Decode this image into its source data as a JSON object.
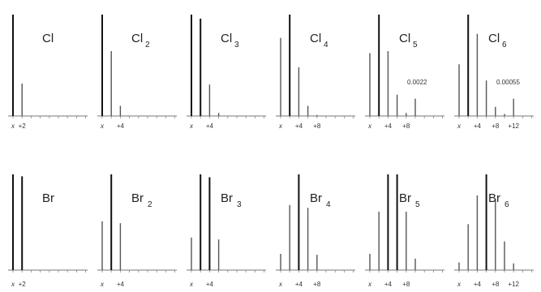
{
  "chart_data": [
    {
      "type": "bar",
      "title": "Cl",
      "subscript": "",
      "x": [
        0,
        2,
        4,
        6,
        8,
        10,
        12,
        14,
        16,
        18
      ],
      "values": [
        100,
        32,
        0,
        0,
        0,
        0,
        0,
        0,
        0,
        0
      ],
      "tick_labels": [
        {
          "x": 0,
          "text": "x"
        },
        {
          "x": 2,
          "text": "+2"
        }
      ],
      "annotation": ""
    },
    {
      "type": "bar",
      "title": "Cl",
      "subscript": "2",
      "x": [
        0,
        2,
        4,
        6,
        8,
        10,
        12,
        14,
        16,
        18
      ],
      "values": [
        100,
        64,
        10,
        0,
        0,
        0,
        0,
        0,
        0,
        0
      ],
      "tick_labels": [
        {
          "x": 0,
          "text": "x"
        },
        {
          "x": 4,
          "text": "+4"
        }
      ],
      "annotation": ""
    },
    {
      "type": "bar",
      "title": "Cl",
      "subscript": "3",
      "x": [
        0,
        2,
        4,
        6,
        8,
        10,
        12,
        14,
        16,
        18
      ],
      "values": [
        100,
        96,
        31,
        3,
        0,
        0,
        0,
        0,
        0,
        0
      ],
      "tick_labels": [
        {
          "x": 0,
          "text": "x"
        },
        {
          "x": 4,
          "text": "+4"
        }
      ],
      "annotation": ""
    },
    {
      "type": "bar",
      "title": "Cl",
      "subscript": "4",
      "x": [
        0,
        2,
        4,
        6,
        8,
        10,
        12,
        14,
        16,
        18
      ],
      "values": [
        77,
        100,
        48,
        10,
        1,
        0,
        0,
        0,
        0,
        0
      ],
      "tick_labels": [
        {
          "x": 0,
          "text": "x"
        },
        {
          "x": 4,
          "text": "+4"
        },
        {
          "x": 8,
          "text": "+8"
        }
      ],
      "annotation": ""
    },
    {
      "type": "bar",
      "title": "Cl",
      "subscript": "5",
      "x": [
        0,
        2,
        4,
        6,
        8,
        10,
        12,
        14,
        16,
        18
      ],
      "values": [
        62,
        100,
        64,
        21,
        3,
        17,
        0,
        0,
        0,
        0
      ],
      "tick_labels": [
        {
          "x": 0,
          "text": "x"
        },
        {
          "x": 4,
          "text": "+4"
        },
        {
          "x": 8,
          "text": "+8"
        }
      ],
      "annotation": "0.0022"
    },
    {
      "type": "bar",
      "title": "Cl",
      "subscript": "6",
      "x": [
        0,
        2,
        4,
        6,
        8,
        10,
        12,
        14,
        16,
        18
      ],
      "values": [
        51,
        100,
        81,
        35,
        9,
        2,
        17,
        0,
        0,
        0
      ],
      "tick_labels": [
        {
          "x": 0,
          "text": "x"
        },
        {
          "x": 4,
          "text": "+4"
        },
        {
          "x": 8,
          "text": "+8"
        },
        {
          "x": 12,
          "text": "+12"
        }
      ],
      "annotation": "0.00055"
    },
    {
      "type": "bar",
      "title": "Br",
      "subscript": "",
      "x": [
        0,
        2,
        4,
        6,
        8,
        10,
        12,
        14,
        16,
        18
      ],
      "values": [
        100,
        98,
        0,
        0,
        0,
        0,
        0,
        0,
        0,
        0
      ],
      "tick_labels": [
        {
          "x": 0,
          "text": "x"
        },
        {
          "x": 2,
          "text": "+2"
        }
      ],
      "annotation": ""
    },
    {
      "type": "bar",
      "title": "Br",
      "subscript": "2",
      "x": [
        0,
        2,
        4,
        6,
        8,
        10,
        12,
        14,
        16,
        18
      ],
      "values": [
        51,
        100,
        49,
        0,
        0,
        0,
        0,
        0,
        0,
        0
      ],
      "tick_labels": [
        {
          "x": 0,
          "text": "x"
        },
        {
          "x": 4,
          "text": "+4"
        }
      ],
      "annotation": ""
    },
    {
      "type": "bar",
      "title": "Br",
      "subscript": "3",
      "x": [
        0,
        2,
        4,
        6,
        8,
        10,
        12,
        14,
        16,
        18
      ],
      "values": [
        34,
        100,
        97,
        32,
        0,
        0,
        0,
        0,
        0,
        0
      ],
      "tick_labels": [
        {
          "x": 0,
          "text": "x"
        },
        {
          "x": 4,
          "text": "+4"
        }
      ],
      "annotation": ""
    },
    {
      "type": "bar",
      "title": "Br",
      "subscript": "4",
      "x": [
        0,
        2,
        4,
        6,
        8,
        10,
        12,
        14,
        16,
        18
      ],
      "values": [
        17,
        68,
        100,
        65,
        16,
        0,
        0,
        0,
        0,
        0
      ],
      "tick_labels": [
        {
          "x": 0,
          "text": "x"
        },
        {
          "x": 4,
          "text": "+4"
        },
        {
          "x": 8,
          "text": "+8"
        }
      ],
      "annotation": ""
    },
    {
      "type": "bar",
      "title": "Br",
      "subscript": "5",
      "x": [
        0,
        2,
        4,
        6,
        8,
        10,
        12,
        14,
        16,
        18
      ],
      "values": [
        17,
        61,
        100,
        100,
        61,
        12,
        0,
        0,
        0,
        0
      ],
      "tick_labels": [
        {
          "x": 0,
          "text": "x"
        },
        {
          "x": 4,
          "text": "+4"
        },
        {
          "x": 8,
          "text": "+8"
        }
      ],
      "annotation": ""
    },
    {
      "type": "bar",
      "title": "Br",
      "subscript": "6",
      "x": [
        0,
        2,
        4,
        6,
        8,
        10,
        12,
        14,
        16,
        18
      ],
      "values": [
        8,
        48,
        78,
        100,
        74,
        30,
        7,
        0,
        0,
        0
      ],
      "tick_labels": [
        {
          "x": 0,
          "text": "x"
        },
        {
          "x": 4,
          "text": "+4"
        },
        {
          "x": 8,
          "text": "+8"
        },
        {
          "x": 12,
          "text": "+12"
        }
      ],
      "annotation": ""
    }
  ]
}
